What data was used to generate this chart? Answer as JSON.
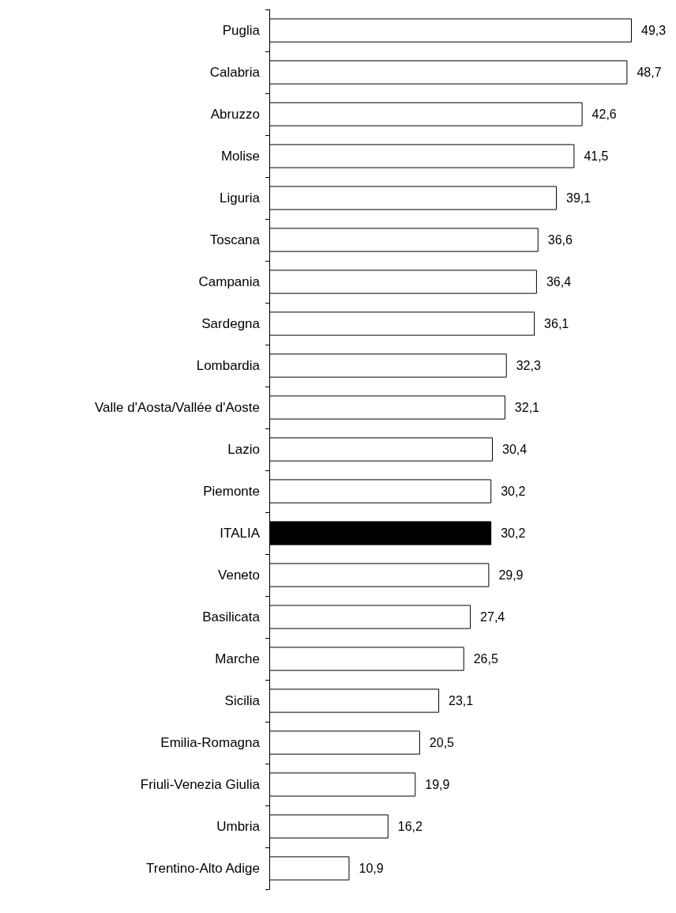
{
  "chart_data": {
    "type": "bar",
    "orientation": "horizontal",
    "categories": [
      "Puglia",
      "Calabria",
      "Abruzzo",
      "Molise",
      "Liguria",
      "Toscana",
      "Campania",
      "Sardegna",
      "Lombardia",
      "Valle d'Aosta/Vallée d'Aoste",
      "Lazio",
      "Piemonte",
      "ITALIA",
      "Veneto",
      "Basilicata",
      "Marche",
      "Sicilia",
      "Emilia-Romagna",
      "Friuli-Venezia Giulia",
      "Umbria",
      "Trentino-Alto Adige"
    ],
    "values": [
      49.3,
      48.7,
      42.6,
      41.5,
      39.1,
      36.6,
      36.4,
      36.1,
      32.3,
      32.1,
      30.4,
      30.2,
      30.2,
      29.9,
      27.4,
      26.5,
      23.1,
      20.5,
      19.9,
      16.2,
      10.9
    ],
    "value_labels": [
      "49,3",
      "48,7",
      "42,6",
      "41,5",
      "39,1",
      "36,6",
      "36,4",
      "36,1",
      "32,3",
      "32,1",
      "30,4",
      "30,2",
      "30,2",
      "29,9",
      "27,4",
      "26,5",
      "23,1",
      "20,5",
      "19,9",
      "16,2",
      "10,9"
    ],
    "colors": [
      "#ffffff",
      "#ffffff",
      "#ffffff",
      "#ffffff",
      "#ffffff",
      "#ffffff",
      "#ffffff",
      "#ffffff",
      "#ffffff",
      "#ffffff",
      "#ffffff",
      "#ffffff",
      "#000000",
      "#ffffff",
      "#ffffff",
      "#ffffff",
      "#ffffff",
      "#ffffff",
      "#ffffff",
      "#ffffff",
      "#ffffff"
    ],
    "tick_labels": "y"
  }
}
